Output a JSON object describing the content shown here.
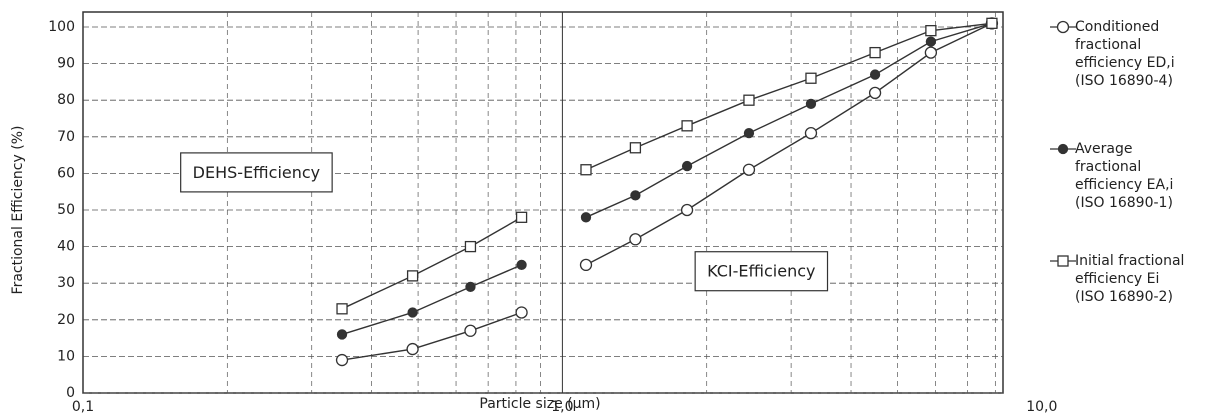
{
  "chart_data": {
    "type": "line",
    "x_label": "Particle size (µm)",
    "y_label": "Fractional Efficiency   (%)",
    "x": [
      0.347,
      0.487,
      0.643,
      0.822,
      null,
      1.12,
      1.42,
      1.82,
      2.45,
      3.3,
      4.49,
      5.87,
      7.87
    ],
    "series": [
      {
        "name": "Conditioned fractional efficiency ED,i (ISO 16890-4)",
        "color": "#333333",
        "marker": "open-circle",
        "values": [
          9,
          12,
          17,
          22,
          null,
          35,
          42,
          50,
          61,
          71,
          82,
          93,
          101
        ]
      },
      {
        "name": "Average fractional efficiency EA,i (ISO 16890-1)",
        "color": "#333333",
        "marker": "filled-circle",
        "values": [
          16,
          22,
          29,
          35,
          null,
          48,
          54,
          62,
          71,
          79,
          87,
          96,
          101
        ]
      },
      {
        "name": "Initial fractional efficiency Ei (ISO 16890-2)",
        "color": "#333333",
        "marker": "open-square",
        "values": [
          23,
          32,
          40,
          48,
          null,
          61,
          67,
          73,
          80,
          86,
          93,
          99,
          101
        ]
      }
    ],
    "annotations": [
      {
        "text": "DEHS-Efficiency",
        "x": 0.23,
        "y": 60
      },
      {
        "text": "KCI-Efficiency",
        "x": 2.6,
        "y": 33
      }
    ],
    "xlim": [
      0.1,
      8.3
    ],
    "x_log": true,
    "xticks": [
      {
        "value": 0.1,
        "label": "0,1"
      },
      {
        "value": 1,
        "label": "1,0"
      },
      {
        "value": 10,
        "label": "10,0"
      }
    ],
    "ylim": [
      0,
      100
    ],
    "yticks": [
      0,
      10,
      20,
      30,
      40,
      50,
      60,
      70,
      80,
      90,
      100
    ],
    "grid": true
  }
}
